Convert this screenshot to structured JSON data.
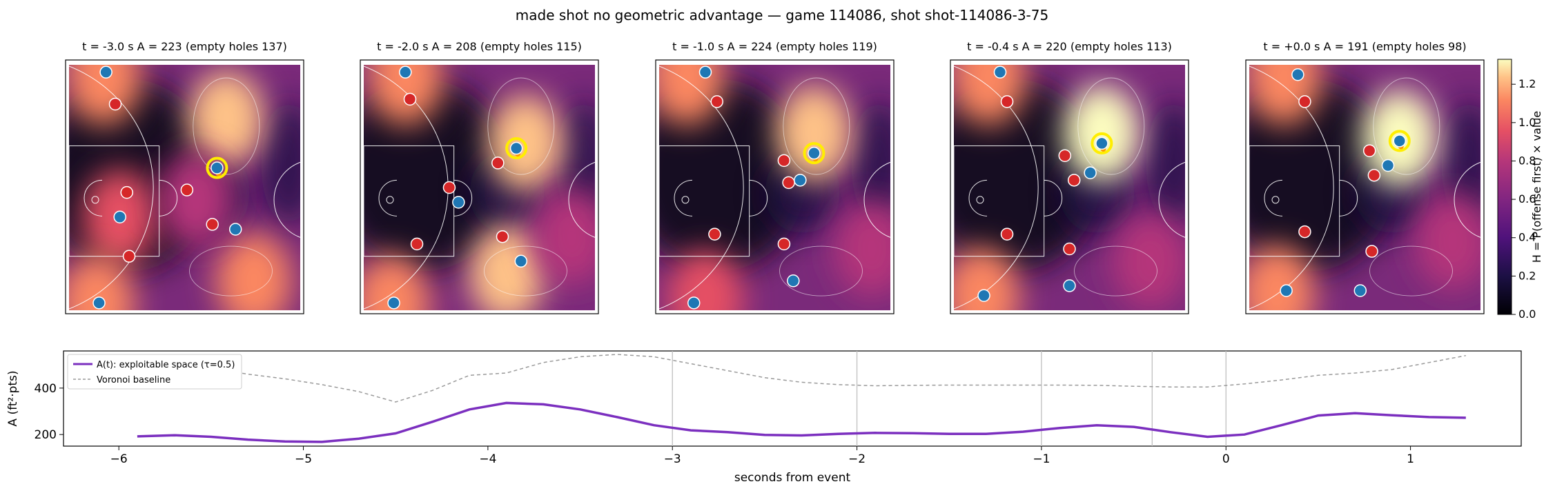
{
  "figure_title": "made shot no geometric advantage — game 114086, shot shot-114086-3-75",
  "colors": {
    "offense": "#1f77b4",
    "defense": "#d62728",
    "shooter_ring": "#ffee00",
    "ball": "#ff9900",
    "a_line": "#7b2fbf",
    "voronoi_line": "#999999",
    "event_lines": "#bfbfbf"
  },
  "chart_data": [
    {
      "type": "heatmap",
      "title": "t = -3.0 s   A = 223  (empty holes 137)",
      "t": -3.0,
      "A": 223,
      "empty_holes": 137,
      "hot_spots": [
        {
          "x": 0.68,
          "y": 0.22,
          "v": 1.05
        },
        {
          "x": 0.8,
          "y": 0.88,
          "v": 0.95
        },
        {
          "x": 0.22,
          "y": 0.62,
          "v": 0.8
        },
        {
          "x": 0.15,
          "y": 0.05,
          "v": 0.9
        },
        {
          "x": 0.12,
          "y": 0.97,
          "v": 0.9
        },
        {
          "x": 0.55,
          "y": 0.55,
          "v": 0.5
        }
      ],
      "offense": [
        [
          0.16,
          0.03
        ],
        [
          0.64,
          0.42
        ],
        [
          0.22,
          0.62
        ],
        [
          0.72,
          0.67
        ],
        [
          0.13,
          0.97
        ]
      ],
      "defense": [
        [
          0.2,
          0.16
        ],
        [
          0.25,
          0.52
        ],
        [
          0.51,
          0.51
        ],
        [
          0.62,
          0.65
        ],
        [
          0.26,
          0.78
        ]
      ],
      "shooter": [
        0.64,
        0.42
      ]
    },
    {
      "type": "heatmap",
      "title": "t = -2.0 s   A = 208  (empty holes 115)",
      "t": -2.0,
      "A": 208,
      "empty_holes": 115,
      "hot_spots": [
        {
          "x": 0.7,
          "y": 0.32,
          "v": 1.1
        },
        {
          "x": 0.62,
          "y": 0.85,
          "v": 1.0
        },
        {
          "x": 0.18,
          "y": 0.05,
          "v": 0.85
        },
        {
          "x": 0.12,
          "y": 0.97,
          "v": 0.9
        },
        {
          "x": 0.9,
          "y": 0.7,
          "v": 0.5
        }
      ],
      "offense": [
        [
          0.18,
          0.03
        ],
        [
          0.66,
          0.34
        ],
        [
          0.41,
          0.56
        ],
        [
          0.68,
          0.8
        ],
        [
          0.13,
          0.97
        ]
      ],
      "defense": [
        [
          0.2,
          0.14
        ],
        [
          0.58,
          0.4
        ],
        [
          0.37,
          0.5
        ],
        [
          0.6,
          0.7
        ],
        [
          0.23,
          0.73
        ]
      ],
      "shooter": [
        0.66,
        0.34
      ]
    },
    {
      "type": "heatmap",
      "title": "t = -1.0 s   A = 224  (empty holes 119)",
      "t": -1.0,
      "A": 224,
      "empty_holes": 119,
      "hot_spots": [
        {
          "x": 0.67,
          "y": 0.28,
          "v": 1.15
        },
        {
          "x": 0.12,
          "y": 0.05,
          "v": 0.85
        },
        {
          "x": 0.2,
          "y": 0.95,
          "v": 0.8
        },
        {
          "x": 0.92,
          "y": 0.75,
          "v": 0.55
        }
      ],
      "offense": [
        [
          0.2,
          0.03
        ],
        [
          0.67,
          0.36
        ],
        [
          0.61,
          0.47
        ],
        [
          0.58,
          0.88
        ],
        [
          0.15,
          0.97
        ]
      ],
      "defense": [
        [
          0.25,
          0.15
        ],
        [
          0.54,
          0.39
        ],
        [
          0.56,
          0.48
        ],
        [
          0.24,
          0.69
        ],
        [
          0.54,
          0.73
        ]
      ],
      "shooter": [
        0.67,
        0.36
      ]
    },
    {
      "type": "heatmap",
      "title": "t = -0.4 s   A = 220  (empty holes 113)",
      "t": -0.4,
      "A": 220,
      "empty_holes": 113,
      "hot_spots": [
        {
          "x": 0.64,
          "y": 0.28,
          "v": 1.2
        },
        {
          "x": 0.15,
          "y": 0.05,
          "v": 0.85
        },
        {
          "x": 0.12,
          "y": 0.94,
          "v": 0.95
        },
        {
          "x": 0.85,
          "y": 0.8,
          "v": 0.55
        }
      ],
      "offense": [
        [
          0.2,
          0.03
        ],
        [
          0.64,
          0.32
        ],
        [
          0.59,
          0.44
        ],
        [
          0.5,
          0.9
        ],
        [
          0.13,
          0.94
        ]
      ],
      "defense": [
        [
          0.23,
          0.15
        ],
        [
          0.48,
          0.37
        ],
        [
          0.52,
          0.47
        ],
        [
          0.23,
          0.69
        ],
        [
          0.5,
          0.75
        ]
      ],
      "shooter": [
        0.64,
        0.32
      ]
    },
    {
      "type": "heatmap",
      "title": "t = +0.0 s   A = 191  (empty holes 98)",
      "t": 0.0,
      "A": 191,
      "empty_holes": 98,
      "hot_spots": [
        {
          "x": 0.65,
          "y": 0.3,
          "v": 1.2
        },
        {
          "x": 0.15,
          "y": 0.05,
          "v": 0.85
        },
        {
          "x": 0.12,
          "y": 0.93,
          "v": 0.95
        },
        {
          "x": 0.88,
          "y": 0.72,
          "v": 0.55
        }
      ],
      "offense": [
        [
          0.21,
          0.04
        ],
        [
          0.65,
          0.31
        ],
        [
          0.6,
          0.41
        ],
        [
          0.48,
          0.92
        ],
        [
          0.16,
          0.92
        ]
      ],
      "defense": [
        [
          0.24,
          0.15
        ],
        [
          0.52,
          0.35
        ],
        [
          0.54,
          0.45
        ],
        [
          0.24,
          0.68
        ],
        [
          0.53,
          0.76
        ]
      ],
      "shooter": [
        0.65,
        0.31
      ]
    },
    {
      "type": "line",
      "ylabel": "A (ft²·pts)",
      "xlabel": "seconds from event",
      "xlim": [
        -6.3,
        1.6
      ],
      "ylim": [
        150,
        560
      ],
      "xticks": [
        -6,
        -5,
        -4,
        -3,
        -2,
        -1,
        0,
        1
      ],
      "yticks": [
        200,
        400
      ],
      "event_lines": [
        -3.0,
        -2.0,
        -1.0,
        -0.4,
        0.0
      ],
      "legend": "top-left",
      "series": [
        {
          "name": "A(t): exploitable space (τ=0.5)",
          "x": [
            -5.9,
            -5.7,
            -5.5,
            -5.3,
            -5.1,
            -4.9,
            -4.7,
            -4.5,
            -4.3,
            -4.1,
            -3.9,
            -3.7,
            -3.5,
            -3.3,
            -3.1,
            -2.9,
            -2.7,
            -2.5,
            -2.3,
            -2.1,
            -1.9,
            -1.7,
            -1.5,
            -1.3,
            -1.1,
            -0.9,
            -0.7,
            -0.5,
            -0.3,
            -0.1,
            0.1,
            0.3,
            0.5,
            0.7,
            0.9,
            1.1,
            1.3
          ],
          "y": [
            192,
            197,
            190,
            178,
            170,
            168,
            182,
            205,
            255,
            308,
            336,
            330,
            308,
            275,
            240,
            218,
            210,
            198,
            196,
            203,
            207,
            206,
            203,
            203,
            212,
            228,
            240,
            233,
            210,
            190,
            200,
            240,
            282,
            292,
            283,
            275,
            272
          ]
        },
        {
          "name": "Voronoi baseline",
          "x": [
            -5.9,
            -5.7,
            -5.5,
            -5.3,
            -5.1,
            -4.9,
            -4.7,
            -4.5,
            -4.3,
            -4.1,
            -3.9,
            -3.7,
            -3.5,
            -3.3,
            -3.1,
            -2.9,
            -2.7,
            -2.5,
            -2.3,
            -2.1,
            -1.9,
            -1.7,
            -1.5,
            -1.3,
            -1.1,
            -0.9,
            -0.7,
            -0.5,
            -0.3,
            -0.1,
            0.1,
            0.3,
            0.5,
            0.7,
            0.9,
            1.1,
            1.3
          ],
          "y": [
            495,
            500,
            485,
            460,
            440,
            415,
            385,
            340,
            390,
            455,
            465,
            510,
            535,
            545,
            535,
            505,
            475,
            445,
            425,
            415,
            410,
            412,
            413,
            413,
            413,
            413,
            412,
            408,
            405,
            405,
            418,
            435,
            455,
            465,
            480,
            510,
            540
          ]
        }
      ]
    }
  ],
  "colorbar": {
    "label": "H = P(offense first) × value",
    "ticks": [
      "0.0",
      "0.2",
      "0.4",
      "0.6",
      "0.8",
      "1.0",
      "1.2"
    ],
    "tick_values": [
      0.0,
      0.2,
      0.4,
      0.6,
      0.8,
      1.0,
      1.2
    ],
    "vmin": 0.0,
    "vmax": 1.33
  }
}
